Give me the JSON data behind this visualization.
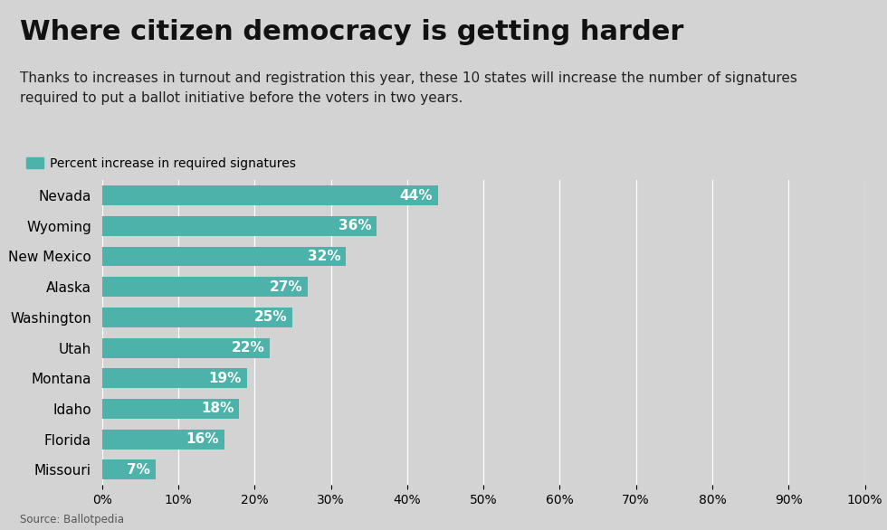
{
  "title": "Where citizen democracy is getting harder",
  "subtitle": "Thanks to increases in turnout and registration this year, these 10 states will increase the number of signatures\nrequired to put a ballot initiative before the voters in two years.",
  "legend_label": "Percent increase in required signatures",
  "source": "Source: Ballotpedia",
  "states": [
    "Nevada",
    "Wyoming",
    "New Mexico",
    "Alaska",
    "Washington",
    "Utah",
    "Montana",
    "Idaho",
    "Florida",
    "Missouri"
  ],
  "values": [
    44,
    36,
    32,
    27,
    25,
    22,
    19,
    18,
    16,
    7
  ],
  "bar_color": "#4db3aa",
  "bar_label_color": "#ffffff",
  "background_color": "#d3d3d3",
  "title_fontsize": 22,
  "subtitle_fontsize": 11,
  "legend_fontsize": 10,
  "bar_label_fontsize": 11,
  "ytick_fontsize": 11,
  "xtick_fontsize": 10,
  "xlim": [
    0,
    100
  ],
  "xticks": [
    0,
    10,
    20,
    30,
    40,
    50,
    60,
    70,
    80,
    90,
    100
  ]
}
